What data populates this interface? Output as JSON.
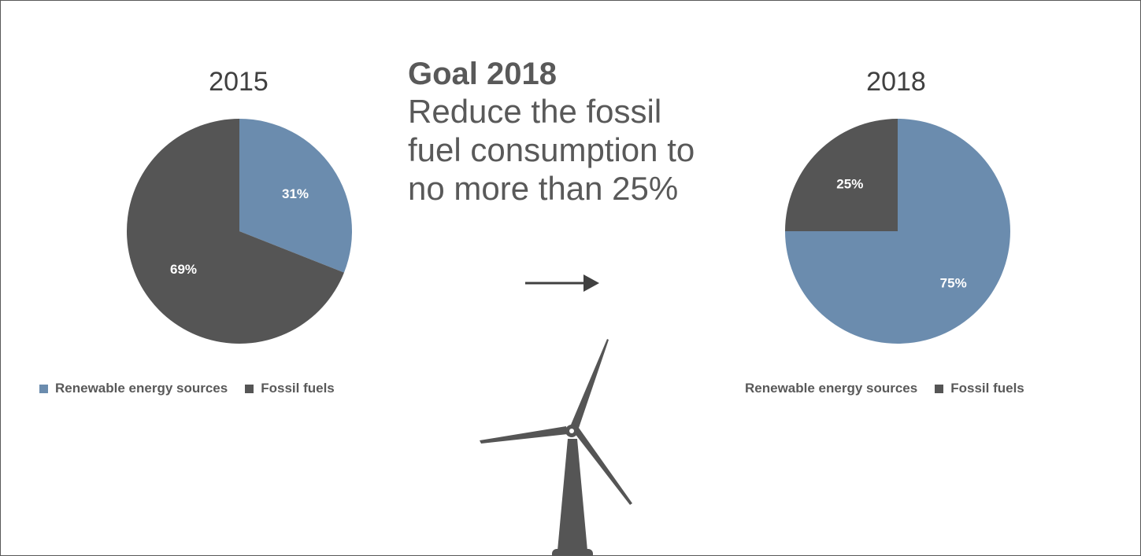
{
  "colors": {
    "renewable": "#6B8CAE",
    "fossil": "#555555",
    "text": "#595959",
    "label": "#ffffff"
  },
  "goal": {
    "title": "Goal 2018",
    "lines": [
      "Reduce the fossil",
      "fuel consumption to",
      "no more than 25%"
    ]
  },
  "chart_data": [
    {
      "type": "pie",
      "title": "2015",
      "categories": [
        "Renewable energy sources",
        "Fossil fuels"
      ],
      "values": [
        31,
        69
      ],
      "labels": [
        "31%",
        "69%"
      ],
      "legend": "bottom"
    },
    {
      "type": "pie",
      "title": "2018",
      "categories": [
        "Renewable energy sources",
        "Fossil fuels"
      ],
      "values": [
        75,
        25
      ],
      "labels": [
        "75%",
        "25%"
      ],
      "legend": "bottom"
    }
  ],
  "legend_2015": [
    "Renewable energy sources",
    "Fossil fuels"
  ],
  "legend_2018": [
    "Renewable energy sources",
    "Fossil fuels"
  ],
  "icons": [
    "arrow-right-icon",
    "wind-turbine-icon"
  ]
}
